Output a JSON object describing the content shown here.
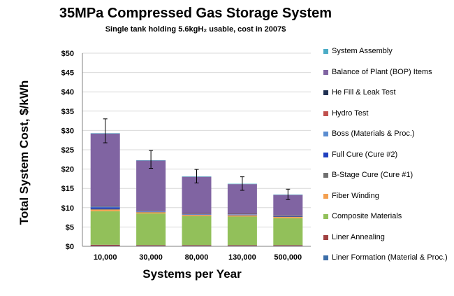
{
  "chart_data": {
    "type": "bar",
    "stacked": true,
    "title": "35MPa Compressed Gas Storage System",
    "subtitle": "Single tank holding 5.6kgH₂ usable, cost in 2007$",
    "xlabel": "Systems per Year",
    "ylabel": "Total System Cost, $/kWh",
    "categories": [
      "10,000",
      "30,000",
      "80,000",
      "130,000",
      "500,000"
    ],
    "ylim": [
      0,
      50
    ],
    "yticks": [
      "$0",
      "$5",
      "$10",
      "$15",
      "$20",
      "$25",
      "$30",
      "$35",
      "$40",
      "$45",
      "$50"
    ],
    "grid": true,
    "legend_position": "right",
    "series": [
      {
        "name": "Liner Formation (Material & Proc.)",
        "color": "#3c6ea8",
        "values": [
          0.1,
          0.1,
          0.1,
          0.1,
          0.1
        ]
      },
      {
        "name": "Liner Annealing",
        "color": "#a04040",
        "values": [
          0.3,
          0.2,
          0.2,
          0.2,
          0.2
        ]
      },
      {
        "name": "Composite Materials",
        "color": "#92c05a",
        "values": [
          8.7,
          8.2,
          7.5,
          7.4,
          7.0
        ]
      },
      {
        "name": "Fiber Winding",
        "color": "#f4a050",
        "values": [
          0.4,
          0.3,
          0.3,
          0.3,
          0.3
        ]
      },
      {
        "name": "B-Stage Cure (Cure #1)",
        "color": "#707070",
        "values": [
          0.2,
          0.1,
          0.1,
          0.1,
          0.1
        ]
      },
      {
        "name": "Full Cure (Cure #2)",
        "color": "#1f3fbf",
        "values": [
          0.4,
          0.1,
          0.1,
          0.1,
          0.1
        ]
      },
      {
        "name": "Boss (Materials & Proc.)",
        "color": "#5b8dd0",
        "values": [
          0.2,
          0.1,
          0.1,
          0.1,
          0.1
        ]
      },
      {
        "name": "Hydro Test",
        "color": "#c0504d",
        "values": [
          0.1,
          0.1,
          0.1,
          0.1,
          0.1
        ]
      },
      {
        "name": "He Fill & Leak Test",
        "color": "#1f3052",
        "values": [
          0.1,
          0.1,
          0.1,
          0.1,
          0.1
        ]
      },
      {
        "name": "Balance of Plant (BOP) Items",
        "color": "#8064a2",
        "values": [
          18.7,
          12.9,
          9.4,
          7.6,
          5.2
        ]
      },
      {
        "name": "System Assembly",
        "color": "#4bacc6",
        "values": [
          0.1,
          0.1,
          0.1,
          0.1,
          0.1
        ]
      }
    ],
    "error_bars": [
      {
        "low": 26.8,
        "high": 33.0
      },
      {
        "low": 20.2,
        "high": 24.8
      },
      {
        "low": 16.4,
        "high": 19.9
      },
      {
        "low": 14.5,
        "high": 18.0
      },
      {
        "low": 12.1,
        "high": 14.8
      }
    ]
  }
}
